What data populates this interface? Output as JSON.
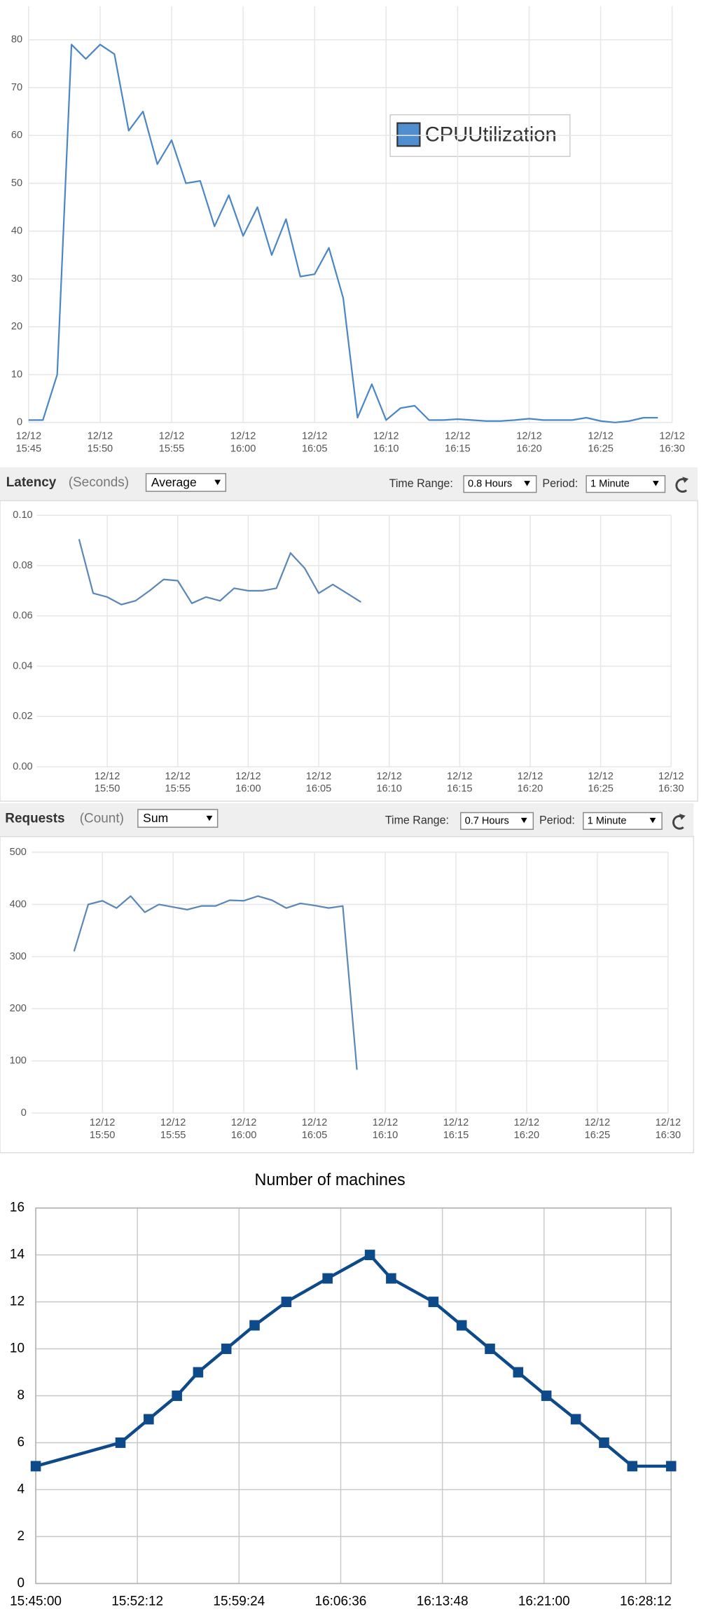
{
  "chart_data": [
    {
      "type": "line",
      "grid": true,
      "x": [
        "15:45",
        "15:46",
        "15:47",
        "15:48",
        "15:49",
        "15:50",
        "15:51",
        "15:52",
        "15:53",
        "15:54",
        "15:55",
        "15:56",
        "15:57",
        "15:58",
        "15:59",
        "16:00",
        "16:01",
        "16:02",
        "16:03",
        "16:04",
        "16:05",
        "16:06",
        "16:07",
        "16:08",
        "16:09",
        "16:10",
        "16:11",
        "16:12",
        "16:13",
        "16:14",
        "16:15",
        "16:16",
        "16:17",
        "16:18",
        "16:19",
        "16:20",
        "16:21",
        "16:22",
        "16:23",
        "16:24",
        "16:25",
        "16:26",
        "16:27",
        "16:28",
        "16:29"
      ],
      "series": [
        {
          "name": "CPUUtilization",
          "color": "#4a86c5",
          "values": [
            0.5,
            0.5,
            10,
            79,
            76,
            79,
            77,
            61,
            65,
            54,
            59,
            50,
            50.5,
            41,
            47.5,
            39,
            45,
            35,
            42.5,
            30.5,
            31,
            36.5,
            26,
            1,
            8,
            0.5,
            3,
            3.5,
            0.5,
            0.5,
            0.7,
            0.5,
            0.3,
            0.3,
            0.5,
            0.8,
            0.5,
            0.5,
            0.5,
            1,
            0.3,
            0,
            0.3,
            1,
            1
          ]
        }
      ],
      "xlim": [
        "15:45",
        "16:30"
      ],
      "xticks": [
        "12/12\n15:45",
        "12/12\n15:50",
        "12/12\n15:55",
        "12/12\n16:00",
        "12/12\n16:05",
        "12/12\n16:10",
        "12/12\n16:15",
        "12/12\n16:20",
        "12/12\n16:25",
        "12/12\n16:30"
      ],
      "ylim": [
        0,
        87
      ],
      "yticks": [
        0,
        10,
        20,
        30,
        40,
        50,
        60,
        70,
        80
      ]
    },
    {
      "type": "line",
      "grid": true,
      "title": "Latency",
      "unit": "(Seconds)",
      "statistic": "Average",
      "time_range_label": "Time Range:",
      "time_range": "0.8 Hours",
      "period_label": "Period:",
      "period": "1 Minute",
      "color": "#5b87b8",
      "x": [
        "15:48",
        "15:49",
        "15:50",
        "15:51",
        "15:52",
        "15:53",
        "15:54",
        "15:55",
        "15:56",
        "15:57",
        "15:58",
        "15:59",
        "16:00",
        "16:01",
        "16:02",
        "16:03",
        "16:04",
        "16:05",
        "16:06",
        "16:07",
        "16:08"
      ],
      "values": [
        0.0905,
        0.069,
        0.0675,
        0.0645,
        0.066,
        0.07,
        0.0745,
        0.074,
        0.065,
        0.0675,
        0.066,
        0.071,
        0.07,
        0.07,
        0.071,
        0.085,
        0.079,
        0.069,
        0.0725,
        0.069,
        0.0655
      ],
      "xlim": [
        "15:45",
        "16:30"
      ],
      "xticks": [
        "12/12\n15:50",
        "12/12\n15:55",
        "12/12\n16:00",
        "12/12\n16:05",
        "12/12\n16:10",
        "12/12\n16:15",
        "12/12\n16:20",
        "12/12\n16:25",
        "12/12\n16:30"
      ],
      "ylim": [
        0,
        0.1
      ],
      "yticks": [
        {
          "value": 0,
          "label": "0.00"
        },
        0.02,
        0.04,
        0.06,
        0.08,
        {
          "value": 0.1,
          "label": "0.10"
        }
      ]
    },
    {
      "type": "line",
      "grid": true,
      "title": "Requests",
      "unit": "(Count)",
      "statistic": "Sum",
      "time_range_label": "Time Range:",
      "time_range": "0.7 Hours",
      "period_label": "Period:",
      "period": "1 Minute",
      "color": "#5b87b8",
      "x": [
        "15:48",
        "15:49",
        "15:50",
        "15:51",
        "15:52",
        "15:53",
        "15:54",
        "15:55",
        "15:56",
        "15:57",
        "15:58",
        "15:59",
        "16:00",
        "16:01",
        "16:02",
        "16:03",
        "16:04",
        "16:05",
        "16:06",
        "16:07",
        "16:08"
      ],
      "values": [
        310,
        400,
        407,
        393,
        416,
        385,
        400,
        395,
        390,
        397,
        397,
        408,
        407,
        416,
        408,
        393,
        402,
        398,
        393,
        397,
        83
      ],
      "xlim": [
        "15:45",
        "16:30"
      ],
      "xticks": [
        "12/12\n15:50",
        "12/12\n15:55",
        "12/12\n16:00",
        "12/12\n16:05",
        "12/12\n16:10",
        "12/12\n16:15",
        "12/12\n16:20",
        "12/12\n16:25",
        "12/12\n16:30"
      ],
      "ylim": [
        0,
        500
      ],
      "yticks": [
        0,
        100,
        200,
        300,
        400,
        500
      ]
    },
    {
      "type": "line",
      "grid": true,
      "markers": true,
      "title": "Number of machines",
      "color": "#0d4a8a",
      "x": [
        "15:45:00",
        "15:51:00",
        "15:53:00",
        "15:55:00",
        "15:56:30",
        "15:58:30",
        "16:00:30",
        "16:02:45",
        "16:05:40",
        "16:08:40",
        "16:10:10",
        "16:13:10",
        "16:15:10",
        "16:17:10",
        "16:19:10",
        "16:21:10",
        "16:23:15",
        "16:25:15",
        "16:27:15",
        "16:30:00"
      ],
      "values": [
        5,
        6,
        7,
        8,
        9,
        10,
        11,
        12,
        13,
        14,
        13,
        12,
        11,
        10,
        9,
        8,
        7,
        6,
        5,
        5
      ],
      "xlim": [
        "15:45:00",
        "16:30:00"
      ],
      "xticks": [
        "15:45:00",
        "15:52:12",
        "15:59:24",
        "16:06:36",
        "16:13:48",
        "16:21:00",
        "16:28:12"
      ],
      "ylim": [
        0,
        16
      ],
      "yticks": [
        0,
        2,
        4,
        6,
        8,
        10,
        12,
        14,
        16
      ]
    }
  ]
}
